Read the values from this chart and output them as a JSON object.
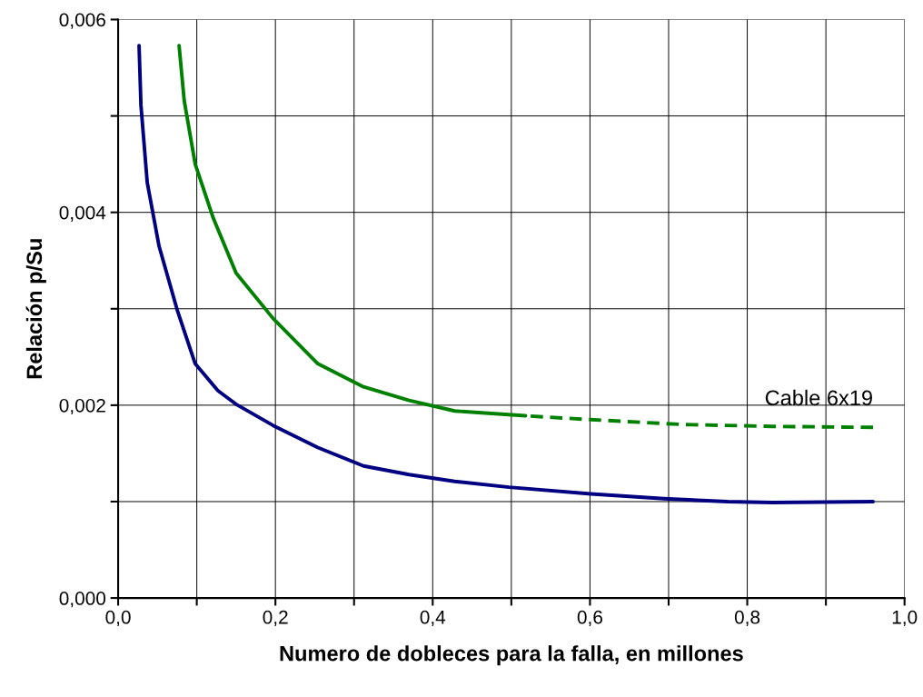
{
  "chart_data": {
    "type": "line",
    "xlabel": "Numero de dobleces para la falla, en millones",
    "ylabel": "Relación p/Su",
    "xlim": [
      0,
      1.0
    ],
    "ylim": [
      0,
      0.006
    ],
    "xticks": [
      {
        "value": 0,
        "label": "0,0"
      },
      {
        "value": 0.1,
        "label": null
      },
      {
        "value": 0.2,
        "label": "0,2"
      },
      {
        "value": 0.3,
        "label": null
      },
      {
        "value": 0.4,
        "label": "0,4"
      },
      {
        "value": 0.5,
        "label": null
      },
      {
        "value": 0.6,
        "label": "0,6"
      },
      {
        "value": 0.7,
        "label": null
      },
      {
        "value": 0.8,
        "label": "0,8"
      },
      {
        "value": 0.9,
        "label": null
      },
      {
        "value": 1.0,
        "label": "1,0"
      }
    ],
    "yticks": [
      {
        "value": 0,
        "label": "0,000"
      },
      {
        "value": 0.001,
        "label": null
      },
      {
        "value": 0.002,
        "label": "0,002"
      },
      {
        "value": 0.003,
        "label": null
      },
      {
        "value": 0.004,
        "label": "0,004"
      },
      {
        "value": 0.005,
        "label": null
      },
      {
        "value": 0.006,
        "label": "0,006"
      }
    ],
    "grid": true,
    "legend": false,
    "marker": "none",
    "series": [
      {
        "color": "#000080",
        "line_style": "solid",
        "x": [
          0.0266,
          0.029,
          0.037,
          0.052,
          0.075,
          0.098,
          0.127,
          0.15,
          0.197,
          0.254,
          0.312,
          0.37,
          0.428,
          0.497,
          0.601,
          0.694,
          0.775,
          0.832,
          0.96
        ],
        "values": [
          0.00573,
          0.00511,
          0.00431,
          0.00365,
          0.00299,
          0.00243,
          0.00215,
          0.00201,
          0.00179,
          0.00156,
          0.00137,
          0.00128,
          0.00121,
          0.00115,
          0.00108,
          0.00103,
          0.001,
          0.00099,
          0.001
        ]
      },
      {
        "color": "#008000",
        "line_style": "solid",
        "x": [
          0.0775,
          0.084,
          0.098,
          0.121,
          0.15,
          0.197,
          0.254,
          0.312,
          0.37,
          0.428,
          0.518
        ],
        "values": [
          0.00573,
          0.00516,
          0.0045,
          0.00394,
          0.00337,
          0.0029,
          0.00243,
          0.00219,
          0.00205,
          0.00194,
          0.00189
        ]
      },
      {
        "name": "Cable 6x19",
        "color": "#008000",
        "line_style": "dashed",
        "x": [
          0.518,
          0.601,
          0.717,
          0.832,
          0.96
        ],
        "values": [
          0.00189,
          0.00185,
          0.0018,
          0.00178,
          0.00177
        ]
      }
    ]
  }
}
